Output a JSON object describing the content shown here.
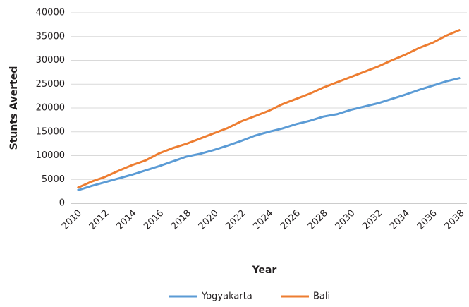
{
  "chart_data": {
    "type": "line",
    "x_label": "Year",
    "y_label": "Stunts Averted",
    "categories": [
      "2010",
      null,
      "2012",
      null,
      "2014",
      null,
      "2016",
      null,
      "2018",
      null,
      "2020",
      null,
      "2022",
      null,
      "2024",
      null,
      "2026",
      null,
      "2028",
      null,
      "2030",
      null,
      "2032",
      null,
      "2034",
      null,
      "2036",
      null,
      "2038"
    ],
    "series": [
      {
        "name": "Yogyakarta",
        "color": "#5b9bd5",
        "values": [
          2700,
          3600,
          4400,
          5200,
          6000,
          6900,
          7800,
          8800,
          9800,
          10400,
          11200,
          12100,
          13100,
          14200,
          15000,
          15700,
          16600,
          17300,
          18200,
          18700,
          19600,
          20300,
          21000,
          21900,
          22800,
          23800,
          24700,
          25600,
          26300
        ]
      },
      {
        "name": "Bali",
        "color": "#ed7d31",
        "values": [
          3200,
          4500,
          5500,
          6800,
          8000,
          9000,
          10500,
          11600,
          12500,
          13600,
          14700,
          15800,
          17200,
          18300,
          19400,
          20800,
          21900,
          23000,
          24300,
          25400,
          26500,
          27600,
          28700,
          30000,
          31200,
          32600,
          33700,
          35200,
          36400
        ]
      }
    ],
    "ylim": [
      0,
      40000
    ],
    "yticks": [
      0,
      5000,
      10000,
      15000,
      20000,
      25000,
      30000,
      35000,
      40000
    ],
    "grid": true
  }
}
